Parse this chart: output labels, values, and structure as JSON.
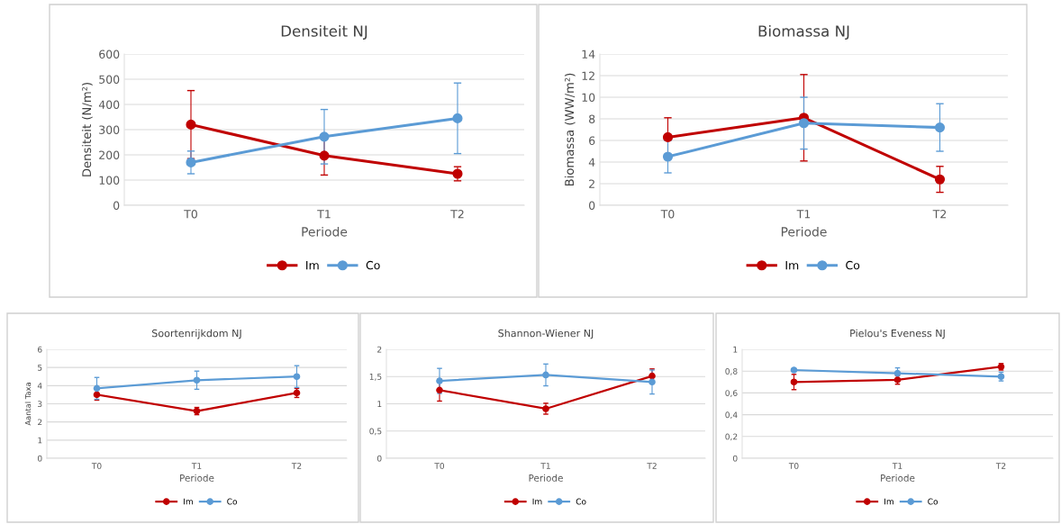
{
  "chart_data": [
    {
      "type": "line",
      "title": "Densiteit NJ",
      "xlabel": "Periode",
      "ylabel": "Densiteit (N/m²)",
      "categories": [
        "T0",
        "T1",
        "T2"
      ],
      "ylim": [
        0,
        600
      ],
      "yticks": [
        0,
        100,
        200,
        300,
        400,
        500,
        600
      ],
      "grid": "y",
      "legend": "bottom",
      "marker": "circle",
      "line_style": "solid",
      "series": [
        {
          "name": "Im",
          "color": "#c00000",
          "values": [
            320,
            197,
            125
          ],
          "errors": [
            135,
            77,
            28
          ]
        },
        {
          "name": "Co",
          "color": "#5b9bd5",
          "values": [
            170,
            272,
            345
          ],
          "errors": [
            45,
            108,
            140
          ]
        }
      ]
    },
    {
      "type": "line",
      "title": "Biomassa NJ",
      "xlabel": "Periode",
      "ylabel": "Biomassa (WW/m²)",
      "categories": [
        "T0",
        "T1",
        "T2"
      ],
      "ylim": [
        0,
        14
      ],
      "yticks": [
        0,
        2,
        4,
        6,
        8,
        10,
        12,
        14
      ],
      "grid": "y",
      "legend": "bottom",
      "marker": "circle",
      "line_style": "solid",
      "series": [
        {
          "name": "Im",
          "color": "#c00000",
          "values": [
            6.3,
            8.1,
            2.4
          ],
          "errors": [
            1.8,
            4.0,
            1.2
          ]
        },
        {
          "name": "Co",
          "color": "#5b9bd5",
          "values": [
            4.5,
            7.6,
            7.2
          ],
          "errors": [
            1.5,
            2.4,
            2.2
          ]
        }
      ]
    },
    {
      "type": "line",
      "title": "Soortenrijkdom NJ",
      "xlabel": "Periode",
      "ylabel": "Aantal Taxa",
      "categories": [
        "T0",
        "T1",
        "T2"
      ],
      "ylim": [
        0,
        6
      ],
      "yticks": [
        0,
        1,
        2,
        3,
        4,
        5,
        6
      ],
      "grid": "y",
      "legend": "bottom",
      "marker": "circle",
      "line_style": "solid",
      "series": [
        {
          "name": "Im",
          "color": "#c00000",
          "values": [
            3.5,
            2.6,
            3.6
          ],
          "errors": [
            0.3,
            0.2,
            0.25
          ]
        },
        {
          "name": "Co",
          "color": "#5b9bd5",
          "values": [
            3.85,
            4.3,
            4.5
          ],
          "errors": [
            0.6,
            0.5,
            0.6
          ]
        }
      ]
    },
    {
      "type": "line",
      "title": "Shannon-Wiener NJ",
      "xlabel": "Periode",
      "categories": [
        "T0",
        "T1",
        "T2"
      ],
      "ylim": [
        0,
        2
      ],
      "yticks": [
        0,
        {
          "value": 0.5,
          "label": "0,5"
        },
        1,
        {
          "value": 1.5,
          "label": "1,5"
        },
        2
      ],
      "grid": "y",
      "legend": "bottom",
      "marker": "circle",
      "line_style": "solid",
      "series": [
        {
          "name": "Im",
          "color": "#c00000",
          "values": [
            1.25,
            0.91,
            1.51
          ],
          "errors": [
            0.2,
            0.1,
            0.13
          ]
        },
        {
          "name": "Co",
          "color": "#5b9bd5",
          "values": [
            1.42,
            1.53,
            1.4
          ],
          "errors": [
            0.23,
            0.2,
            0.22
          ]
        }
      ]
    },
    {
      "type": "line",
      "title": "Pielou's Eveness NJ",
      "xlabel": "Periode",
      "categories": [
        "T0",
        "T1",
        "T2"
      ],
      "ylim": [
        0,
        1
      ],
      "yticks": [
        0,
        {
          "value": 0.2,
          "label": "0,2"
        },
        {
          "value": 0.4,
          "label": "0,4"
        },
        {
          "value": 0.6,
          "label": "0,6"
        },
        {
          "value": 0.8,
          "label": "0,8"
        },
        1
      ],
      "grid": "y",
      "legend": "bottom",
      "marker": "circle",
      "line_style": "solid",
      "series": [
        {
          "name": "Im",
          "color": "#c00000",
          "values": [
            0.7,
            0.72,
            0.84
          ],
          "errors": [
            0.07,
            0.04,
            0.03
          ]
        },
        {
          "name": "Co",
          "color": "#5b9bd5",
          "values": [
            0.81,
            0.78,
            0.75
          ],
          "errors": [
            0.01,
            0.05,
            0.04
          ]
        }
      ]
    }
  ]
}
